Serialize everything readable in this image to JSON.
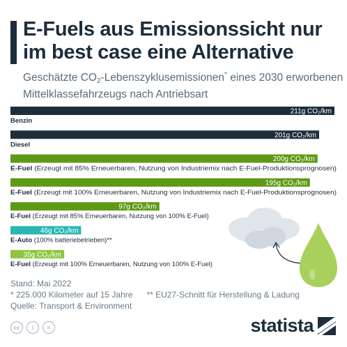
{
  "header": {
    "title": "E-Fuels aus Emissionssicht nur im best case eine Alternative",
    "subtitle_pre": "Geschätzte CO",
    "subtitle_sub": "2",
    "subtitle_mid": "-Lebenszyklusemissionen",
    "subtitle_sup": "*",
    "subtitle_post": " eines 2030 erworbenen Mittelklassefahrzeugs nach Antriebsart"
  },
  "chart_data": {
    "type": "bar",
    "orientation": "horizontal",
    "unit": "g CO₂/km",
    "xlim": [
      0,
      211
    ],
    "bars": [
      {
        "category_bold": "Benzin",
        "category_rest": "",
        "value": 211,
        "value_label": "211g CO₂/km",
        "color": "#1d2d3c"
      },
      {
        "category_bold": "Diesel",
        "category_rest": "",
        "value": 201,
        "value_label": "201g CO₂/km",
        "color": "#1d2d3c"
      },
      {
        "category_bold": "E-Fuel",
        "category_rest": " (Erzeugt mit 85% Erneuerbaren, Nutzung von Industriemix nach E-Fuel-Produktionsprognosen)",
        "value": 200,
        "value_label": "200g CO₂/km",
        "color": "#5f9a16"
      },
      {
        "category_bold": "E-Fuel",
        "category_rest": " (Erzeugt mit 100% Erneuerbaren, Nutzung von Industriemix nach E-Fuel-Produktionsprognosen)",
        "value": 195,
        "value_label": "195g CO₂/km",
        "color": "#5f9a16"
      },
      {
        "category_bold": "E-Fuel",
        "category_rest": " (Erzeugt mit 85% Erneuerbaren, Nutzung von 100% E-Fuel)",
        "value": 97,
        "value_label": "97g CO₂/km",
        "color": "#5f9a16"
      },
      {
        "category_bold": "E-Auto",
        "category_rest": " (100% batteriebetrieben)**",
        "value": 46,
        "value_label": "46g CO₂/km",
        "color": "#2ab7b2"
      },
      {
        "category_bold": "E-Fuel",
        "category_rest": " (Erzeugt mit 100% Erneuerbaren, Nutzung von 100% E-Fuel)",
        "value": 35,
        "value_label": "35g CO₂/km",
        "color": "#8ec63f"
      }
    ]
  },
  "footer": {
    "stand": "Stand: Mai 2022",
    "note1": "* 225.000 Kilometer auf 15 Jahre",
    "note2": "** EU27-Schnitt für Herstellung & Ladung",
    "source": "Quelle: Transport & Environment"
  },
  "license_icons": [
    "cc-icon",
    "person-icon",
    "equals-icon"
  ],
  "license_glyphs": [
    "cc",
    "i",
    "="
  ],
  "brand": {
    "name": "statista"
  }
}
